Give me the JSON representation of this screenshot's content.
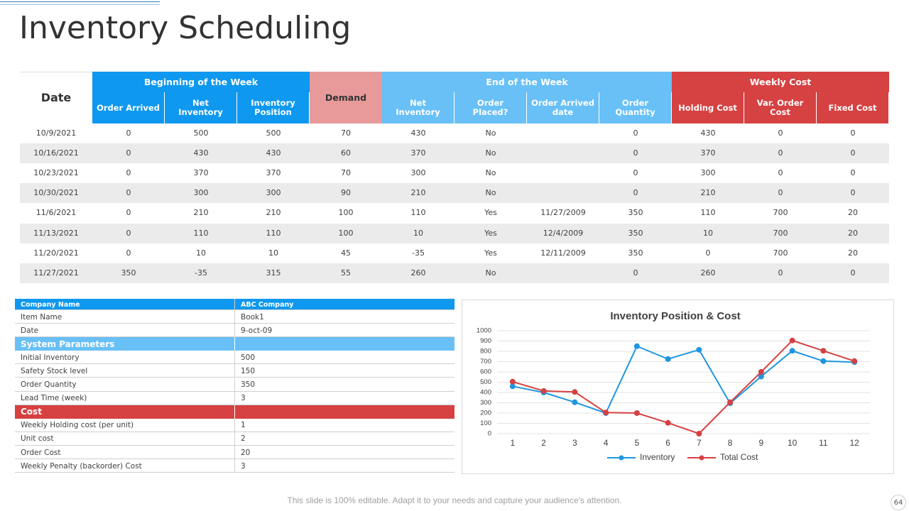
{
  "title": "Inventory Scheduling",
  "table": {
    "date_header": "Date",
    "groups": [
      {
        "label": "Beginning of the Week",
        "color": "#0f98ef",
        "columns": [
          "Order Arrived",
          "Net Inventory",
          "Inventory Position"
        ]
      },
      {
        "label": "Demand",
        "color": "#e89a9b"
      },
      {
        "label": "End of the Week",
        "color": "#68c0f6",
        "columns": [
          "Net Inventory",
          "Order Placed?",
          "Order Arrived date",
          "Order Quantity"
        ]
      },
      {
        "label": "Weekly Cost",
        "color": "#d64142",
        "columns": [
          "Holding Cost",
          "Var. Order Cost",
          "Fixed Cost"
        ]
      }
    ],
    "rows": [
      [
        "10/9/2021",
        0,
        500,
        500,
        70,
        430,
        "No",
        null,
        0,
        430,
        0,
        0
      ],
      [
        "10/16/2021",
        0,
        430,
        430,
        60,
        370,
        "No",
        null,
        0,
        370,
        0,
        0
      ],
      [
        "10/23/2021",
        0,
        370,
        370,
        70,
        300,
        "No",
        null,
        0,
        300,
        0,
        0
      ],
      [
        "10/30/2021",
        0,
        300,
        300,
        90,
        210,
        "No",
        null,
        0,
        210,
        0,
        0
      ],
      [
        "11/6/2021",
        0,
        210,
        210,
        100,
        110,
        "Yes",
        "11/27/2009",
        350,
        110,
        700,
        20
      ],
      [
        "11/13/2021",
        0,
        110,
        110,
        100,
        10,
        "Yes",
        "12/4/2009",
        350,
        10,
        700,
        20
      ],
      [
        "11/20/2021",
        0,
        10,
        10,
        45,
        -35,
        "Yes",
        "12/11/2009",
        350,
        0,
        700,
        20
      ],
      [
        "11/27/2021",
        350,
        -35,
        315,
        55,
        260,
        "No",
        null,
        0,
        260,
        0,
        0
      ]
    ]
  },
  "params": {
    "header": [
      "Company Name",
      "ABC Company"
    ],
    "header_color": "#0f98ef",
    "general": [
      [
        "Item Name",
        "Book1"
      ],
      [
        "Date",
        "9-oct-09"
      ]
    ],
    "sections": [
      {
        "title": "System Parameters",
        "color": "#68c0f6",
        "rows": [
          [
            "Initial Inventory",
            500
          ],
          [
            "Safety Stock level",
            150
          ],
          [
            "Order Quantity",
            350
          ],
          [
            "Lead Time (week)",
            3
          ]
        ]
      },
      {
        "title": "Cost",
        "color": "#d64142",
        "rows": [
          [
            "Weekly Holding cost (per unit)",
            1
          ],
          [
            "Unit cost",
            2
          ],
          [
            "Order Cost",
            20
          ],
          [
            "Weekly Penalty (backorder) Cost",
            3
          ]
        ]
      }
    ]
  },
  "chart_data": {
    "type": "line",
    "title": "Inventory Position & Cost",
    "categories": [
      "1",
      "2",
      "3",
      "4",
      "5",
      "6",
      "7",
      "8",
      "9",
      "10",
      "11",
      "12"
    ],
    "series": [
      {
        "name": "Inventory",
        "color": "#1e96e0",
        "values": [
          460,
          400,
          305,
          200,
          850,
          725,
          815,
          295,
          555,
          805,
          705,
          695
        ]
      },
      {
        "name": "Total Cost",
        "color": "#d64142",
        "values": [
          505,
          415,
          405,
          205,
          200,
          105,
          0,
          305,
          600,
          905,
          805,
          705
        ]
      }
    ],
    "ylim": [
      0,
      1000
    ],
    "yticks": [
      0,
      100,
      200,
      300,
      400,
      500,
      600,
      700,
      800,
      900,
      1000
    ],
    "grid": true
  },
  "footer": "This slide is 100% editable. Adapt it to your needs and capture your audience's attention.",
  "page_number": 64
}
